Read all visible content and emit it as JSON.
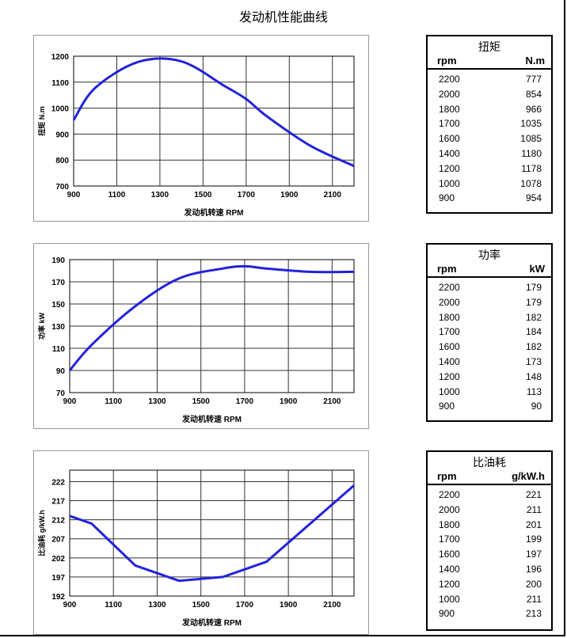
{
  "title": "发动机性能曲线",
  "colors": {
    "curve": "#2222dd",
    "grid": "#333333"
  },
  "chart_data": [
    {
      "type": "line",
      "xlabel": "发动机转速 RPM",
      "ylabel": "扭矩 N.m",
      "xlim": [
        900,
        2200
      ],
      "ylim": [
        700,
        1200
      ],
      "xticks": [
        900,
        1100,
        1300,
        1500,
        1700,
        1900,
        2100
      ],
      "yticks": [
        700,
        800,
        900,
        1000,
        1100,
        1200
      ],
      "grid": true,
      "x": [
        900,
        1000,
        1200,
        1400,
        1600,
        1700,
        1800,
        2000,
        2200
      ],
      "y": [
        954,
        1078,
        1178,
        1180,
        1085,
        1035,
        966,
        854,
        777
      ]
    },
    {
      "type": "line",
      "xlabel": "发动机转速 RPM",
      "ylabel": "功率 kW",
      "xlim": [
        900,
        2200
      ],
      "ylim": [
        70,
        190
      ],
      "xticks": [
        900,
        1100,
        1300,
        1500,
        1700,
        1900,
        2100
      ],
      "yticks": [
        70,
        90,
        110,
        130,
        150,
        170,
        190
      ],
      "grid": true,
      "x": [
        900,
        1000,
        1200,
        1400,
        1600,
        1700,
        1800,
        2000,
        2200
      ],
      "y": [
        90,
        113,
        148,
        173,
        182,
        184,
        182,
        179,
        179
      ]
    },
    {
      "type": "line",
      "xlabel": "发动机转速 RPM",
      "ylabel": "比油耗 g/kW.h",
      "xlim": [
        900,
        2200
      ],
      "ylim": [
        192,
        225
      ],
      "xticks": [
        900,
        1100,
        1300,
        1500,
        1700,
        1900,
        2100
      ],
      "yticks": [
        192,
        197,
        202,
        207,
        212,
        217,
        222
      ],
      "grid": true,
      "x": [
        900,
        1000,
        1200,
        1400,
        1600,
        1700,
        1800,
        2000,
        2200
      ],
      "y": [
        213,
        211,
        200,
        196,
        197,
        199,
        201,
        211,
        221
      ]
    }
  ],
  "tables": [
    {
      "title": "扭矩",
      "col1": "rpm",
      "col2": "N.m",
      "rows": [
        [
          "2200",
          "777"
        ],
        [
          "2000",
          "854"
        ],
        [
          "1800",
          "966"
        ],
        [
          "1700",
          "1035"
        ],
        [
          "1600",
          "1085"
        ],
        [
          "1400",
          "1180"
        ],
        [
          "1200",
          "1178"
        ],
        [
          "1000",
          "1078"
        ],
        [
          "900",
          "954"
        ]
      ]
    },
    {
      "title": "功率",
      "col1": "rpm",
      "col2": "kW",
      "rows": [
        [
          "2200",
          "179"
        ],
        [
          "2000",
          "179"
        ],
        [
          "1800",
          "182"
        ],
        [
          "1700",
          "184"
        ],
        [
          "1600",
          "182"
        ],
        [
          "1400",
          "173"
        ],
        [
          "1200",
          "148"
        ],
        [
          "1000",
          "113"
        ],
        [
          "900",
          "90"
        ]
      ]
    },
    {
      "title": "比油耗",
      "col1": "rpm",
      "col2": "g/kW.h",
      "rows": [
        [
          "2200",
          "221"
        ],
        [
          "2000",
          "211"
        ],
        [
          "1800",
          "201"
        ],
        [
          "1700",
          "199"
        ],
        [
          "1600",
          "197"
        ],
        [
          "1400",
          "196"
        ],
        [
          "1200",
          "200"
        ],
        [
          "1000",
          "211"
        ],
        [
          "900",
          "213"
        ]
      ]
    }
  ]
}
